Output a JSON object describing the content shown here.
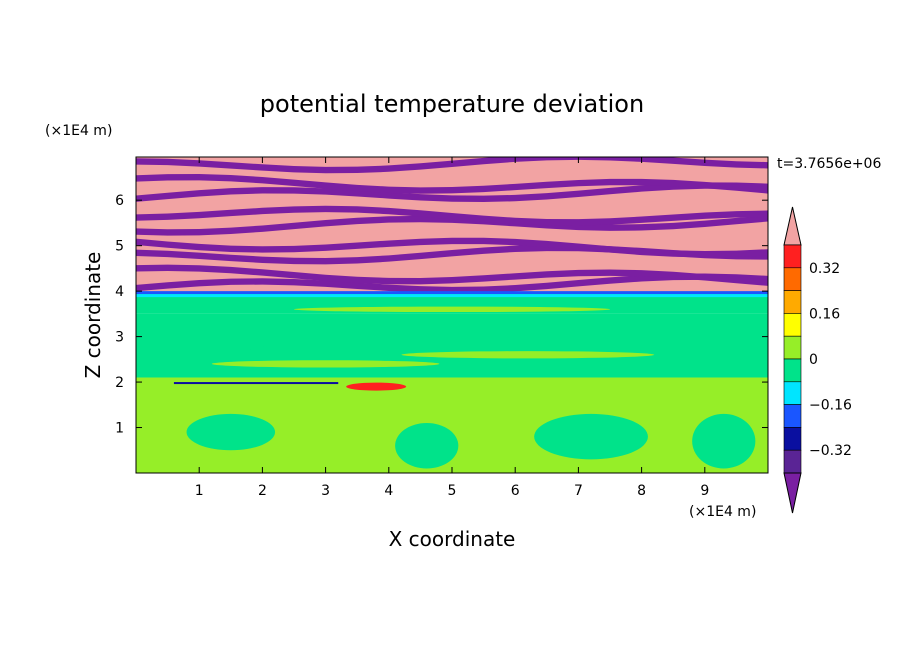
{
  "chart_data": {
    "type": "heatmap",
    "title": "potential temperature deviation",
    "xlabel": "X coordinate",
    "ylabel": "Z coordinate",
    "x_unit": "(×1E4 m)",
    "y_unit": "(×1E4 m)",
    "time_label": "t=3.7656e+06",
    "xlim": [
      0,
      10
    ],
    "ylim": [
      0,
      6.95
    ],
    "x_ticks": [
      1,
      2,
      3,
      4,
      5,
      6,
      7,
      8,
      9
    ],
    "y_ticks": [
      1,
      2,
      3,
      4,
      5,
      6
    ],
    "colorbar": {
      "levels": [
        -0.48,
        -0.4,
        -0.32,
        -0.24,
        -0.16,
        -0.08,
        0,
        0.08,
        0.16,
        0.24,
        0.32,
        0.4,
        0.48
      ],
      "labels": [
        "0.32",
        "0.16",
        "0",
        "−0.16",
        "−0.32"
      ],
      "label_values": [
        0.32,
        0.16,
        0,
        -0.16,
        -0.32
      ],
      "colors": [
        "#7a1fa2",
        "#5a2495",
        "#0a0fa0",
        "#1a56ff",
        "#00e5ff",
        "#00e38a",
        "#96ee28",
        "#ffff00",
        "#ffaa00",
        "#ff6a00",
        "#ff2020",
        "#f2a3a3"
      ],
      "extend": "both"
    },
    "regions": {
      "upper_layer_top": 6.95,
      "upper_layer_bottom": 3.95,
      "stripe_count": 9,
      "lower_layer_bands": [
        {
          "z0": 3.95,
          "z1": 3.5,
          "color_index": 5
        },
        {
          "z0": 3.5,
          "z1": 2.1,
          "color_index": 5
        },
        {
          "z0": 2.1,
          "z1": 0,
          "color_index": 6
        }
      ]
    }
  }
}
